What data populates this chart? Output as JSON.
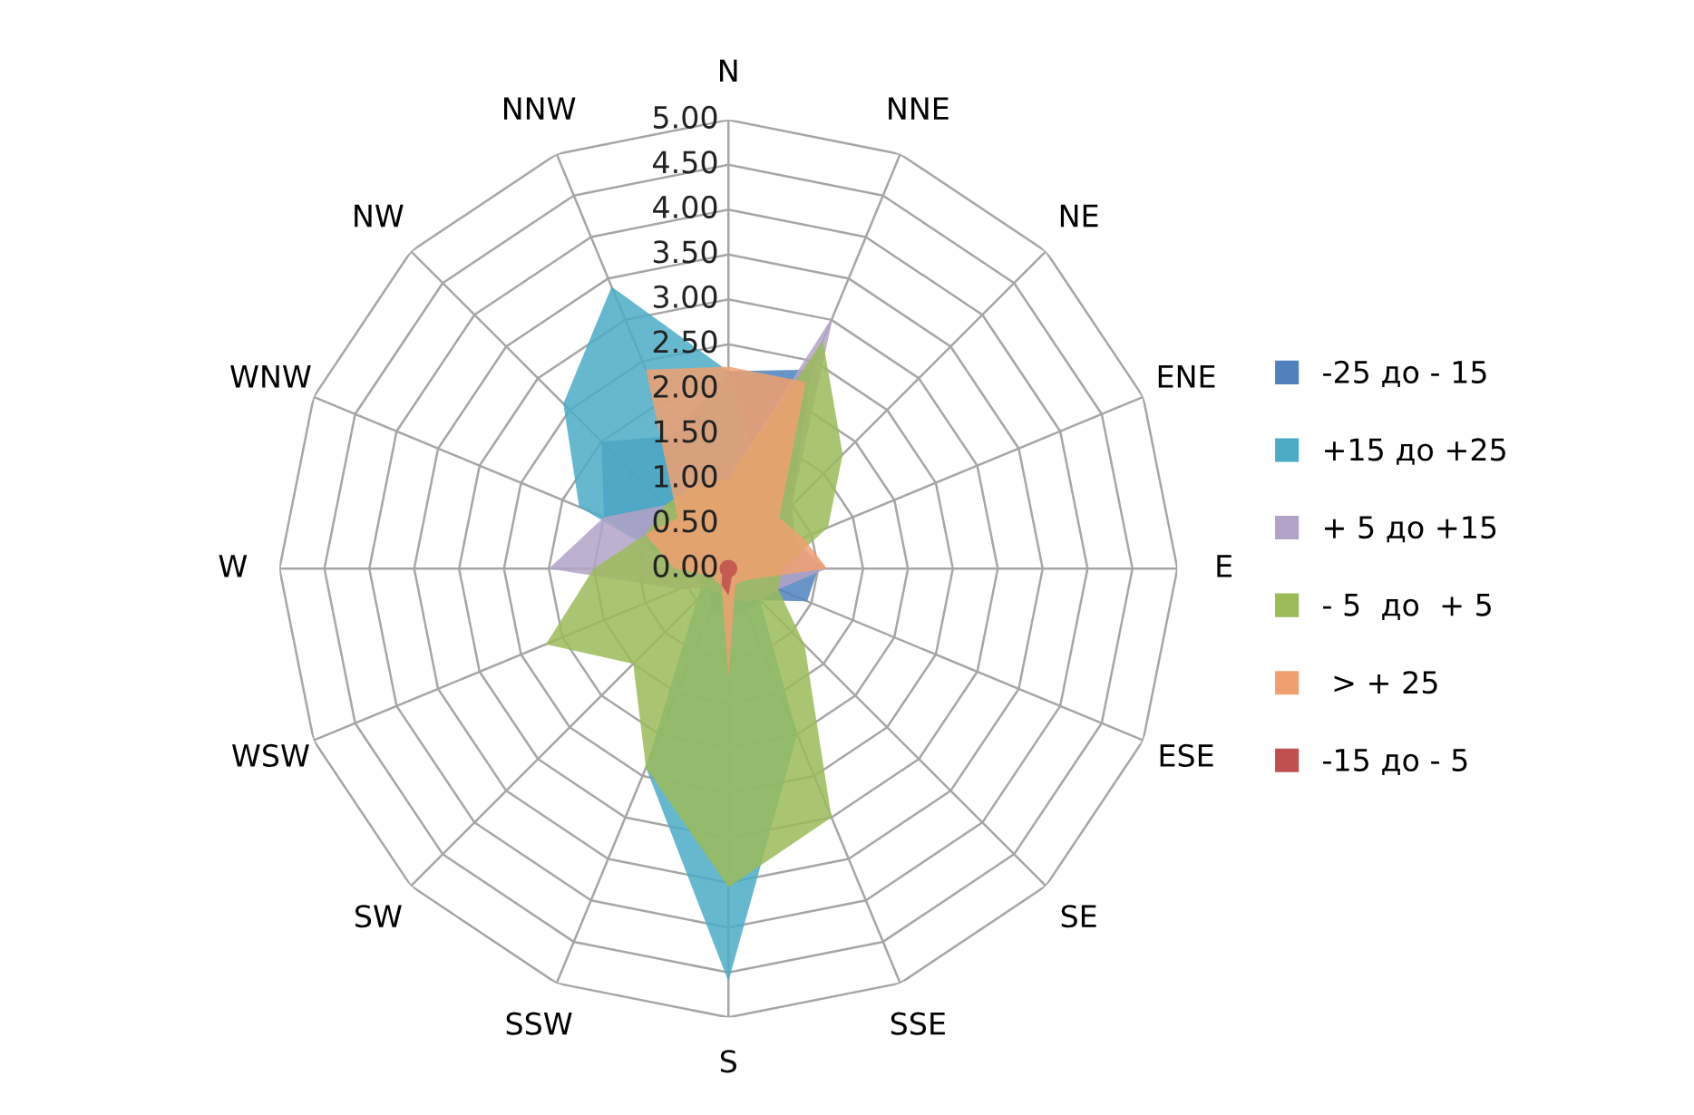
{
  "chart_data": {
    "type": "radar",
    "categories": [
      "N",
      "NNE",
      "NE",
      "ENE",
      "E",
      "ESE",
      "SE",
      "SSE",
      "S",
      "SSW",
      "SW",
      "WSW",
      "W",
      "WNW",
      "NW",
      "NNW"
    ],
    "ylim": [
      0,
      5
    ],
    "yticks": [
      {
        "value": 0,
        "label": "0.00"
      },
      {
        "value": 0.5,
        "label": "0.50"
      },
      {
        "value": 1,
        "label": "1.00"
      },
      {
        "value": 1.5,
        "label": "1.50"
      },
      {
        "value": 2,
        "label": "2.00"
      },
      {
        "value": 2.5,
        "label": "2.50"
      },
      {
        "value": 3,
        "label": "3.00"
      },
      {
        "value": 3.5,
        "label": "3.50"
      },
      {
        "value": 4,
        "label": "4.00"
      },
      {
        "value": 4.5,
        "label": "4.50"
      },
      {
        "value": 5,
        "label": "5.00"
      }
    ],
    "grid": true,
    "legend": "right",
    "marker": "none",
    "series": [
      {
        "name": "-25 до - 15",
        "color": "#4f81bd",
        "values": [
          2.2,
          2.4,
          1.0,
          0.8,
          1.0,
          0.95,
          0.5,
          0.5,
          0.5,
          0.5,
          0.3,
          0.3,
          0.5,
          1.5,
          2.0,
          1.6
        ]
      },
      {
        "name": "+15 до +25",
        "color": "#4bacc6",
        "values": [
          2.2,
          1.0,
          0.5,
          0.3,
          0.3,
          0.3,
          0.5,
          2.0,
          4.6,
          2.4,
          0.5,
          0.3,
          0.5,
          1.8,
          2.6,
          3.4
        ]
      },
      {
        "name": "+ 5 до +15",
        "color": "#b3a2c7",
        "values": [
          1.0,
          3.05,
          1.0,
          0.8,
          1.1,
          0.6,
          0.5,
          0.4,
          0.3,
          0.3,
          0.3,
          0.6,
          2.0,
          1.5,
          1.0,
          0.5
        ]
      },
      {
        "name": "- 5  до  + 5",
        "color": "#9bbb59",
        "values": [
          1.0,
          2.75,
          1.8,
          1.2,
          0.6,
          0.6,
          1.2,
          3.0,
          3.55,
          2.4,
          1.5,
          2.2,
          1.5,
          1.0,
          1.0,
          1.0
        ]
      },
      {
        "name": " > + 25",
        "color": "#f0a070",
        "values": [
          2.25,
          2.25,
          0.8,
          0.9,
          1.1,
          0.3,
          0.2,
          0.2,
          1.2,
          0.2,
          0.2,
          0.2,
          0.6,
          1.0,
          0.8,
          2.4
        ]
      },
      {
        "name": "-15 до - 5",
        "color": "#c0504d",
        "values": [
          0.1,
          0.1,
          0.1,
          0.1,
          0.1,
          0.1,
          0.1,
          0.1,
          0.3,
          0.2,
          0.1,
          0.1,
          0.1,
          0.1,
          0.1,
          0.1
        ]
      }
    ]
  }
}
